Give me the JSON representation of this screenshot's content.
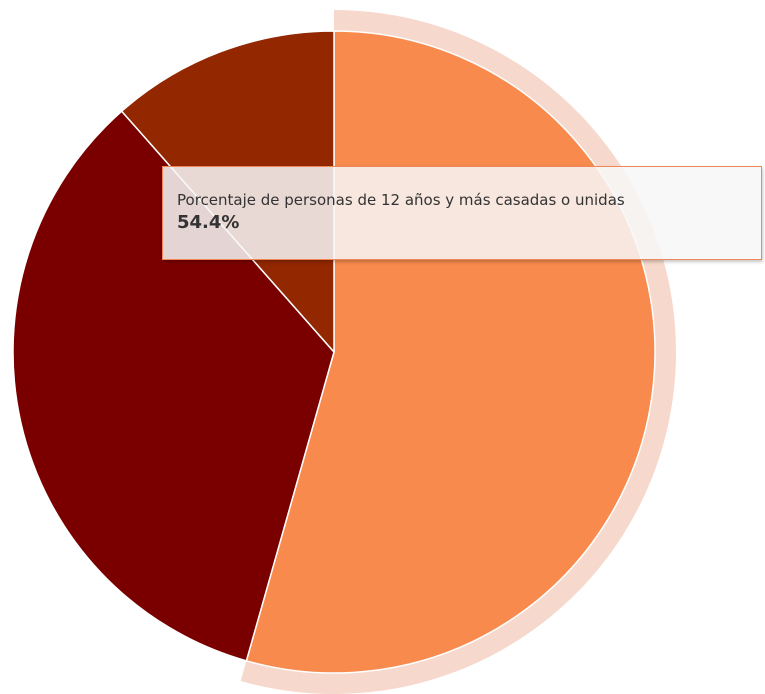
{
  "chart_data": {
    "type": "pie",
    "categories": [
      "",
      "",
      ""
    ],
    "values": [
      54.4,
      34.1,
      11.5
    ],
    "colors": [
      "#f78a4c",
      "#7a0000",
      "#922700"
    ],
    "hover_halo_color": "#f6d9cc",
    "slice_border_color": "#ffffff",
    "hovered_index": 0,
    "tooltip": {
      "series_name": "Porcentaje de personas de 12 años y más casadas o unidas",
      "value_text": "54.4%"
    }
  }
}
